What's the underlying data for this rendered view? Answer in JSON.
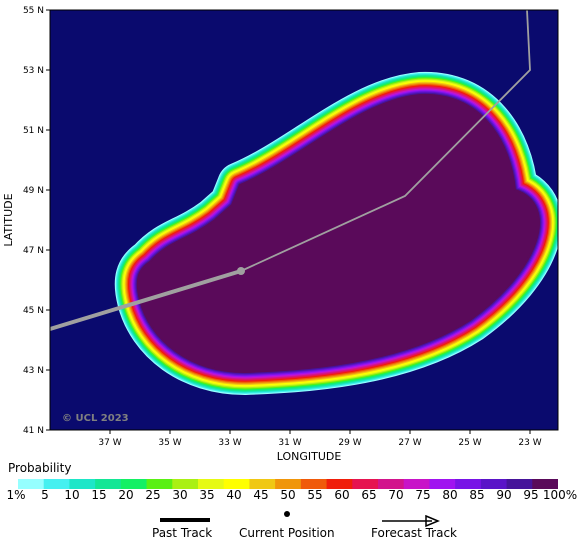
{
  "map": {
    "copyright": "© UCL 2023",
    "y_axis_title": "LATITUDE",
    "x_axis_title": "LONGITUDE",
    "lat_labels": [
      "55 N",
      "53 N",
      "51 N",
      "49 N",
      "47 N",
      "45 N",
      "43 N",
      "41 N"
    ],
    "lon_labels": [
      "37 W",
      "35 W",
      "33 W",
      "31 W",
      "29 W",
      "27 W",
      "25 W",
      "23 W"
    ],
    "ocean_color": "#0a0a6e",
    "past_track_color": "#a0a0a0",
    "forecast_track_color": "#a0a0a0"
  },
  "legend": {
    "title": "Probability",
    "labels": [
      "1%",
      "5",
      "10",
      "15",
      "20",
      "25",
      "30",
      "35",
      "40",
      "45",
      "50",
      "55",
      "60",
      "65",
      "70",
      "75",
      "80",
      "85",
      "90",
      "95",
      "100%"
    ],
    "colors": [
      "#96ffff",
      "#46f0f0",
      "#1ee6c8",
      "#14e696",
      "#14f064",
      "#5af014",
      "#aaf014",
      "#e6fa14",
      "#ffff00",
      "#f0c814",
      "#f0960a",
      "#f05a0a",
      "#f01e0a",
      "#e61450",
      "#d2148c",
      "#c814c8",
      "#a014f0",
      "#7814e6",
      "#5a14c8",
      "#46149a",
      "#5a0a5a"
    ]
  },
  "track_legend": {
    "past": "Past Track",
    "current": "Current Position",
    "forecast": "Forecast Track"
  }
}
